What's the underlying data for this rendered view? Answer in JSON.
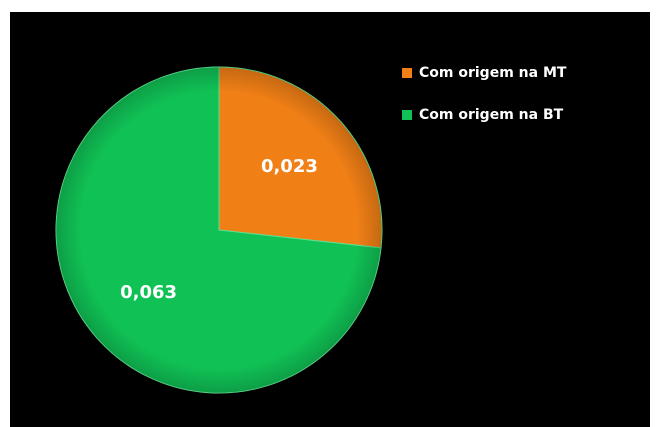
{
  "chart_data": {
    "type": "pie",
    "categories": [
      "Com origem na MT",
      "Com origem na BT"
    ],
    "values": [
      0.023,
      0.063
    ],
    "value_labels": [
      "0,023",
      "0,063"
    ],
    "colors": [
      "#f07f16",
      "#10c155"
    ],
    "legend": "top-right"
  }
}
